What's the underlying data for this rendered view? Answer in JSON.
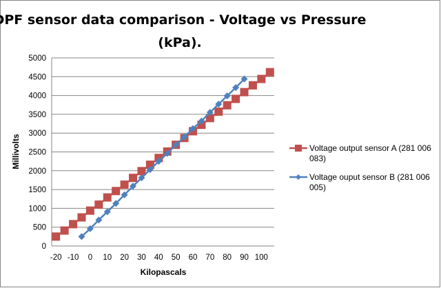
{
  "chart_data": {
    "type": "line",
    "title_lines": [
      "DPF sensor data comparison - Voltage vs Pressure",
      "(kPa)."
    ],
    "xlabel": "Kilopascals",
    "ylabel": "Millivolts",
    "x": [
      -20,
      -15,
      -10,
      -5,
      0,
      5,
      10,
      15,
      20,
      25,
      30,
      35,
      40,
      45,
      50,
      55,
      60,
      65,
      70,
      75,
      80,
      85,
      90,
      95,
      100,
      105
    ],
    "x_tick_labels": [
      "-20",
      "-10",
      "0",
      "10",
      "20",
      "30",
      "40",
      "50",
      "60",
      "70",
      "80",
      "90",
      "100"
    ],
    "y_ticks": [
      0,
      500,
      1000,
      1500,
      2000,
      2500,
      3000,
      3500,
      4000,
      4500,
      5000
    ],
    "ylim": [
      0,
      5000
    ],
    "grid": "horizontal",
    "legend_position": "right",
    "series": [
      {
        "name": "Voltage output sensor A (281 006 083)",
        "legend_lines": [
          "Voltage output sensor A (281 006",
          "083)"
        ],
        "color": "#C0504D",
        "marker": "square",
        "x": [
          -20,
          -15,
          -10,
          -5,
          0,
          5,
          10,
          15,
          20,
          25,
          30,
          35,
          40,
          45,
          50,
          55,
          60,
          65,
          70,
          75,
          80,
          85,
          90,
          95,
          100,
          105
        ],
        "values": [
          250,
          410,
          580,
          760,
          940,
          1100,
          1290,
          1460,
          1630,
          1810,
          1990,
          2160,
          2340,
          2510,
          2690,
          2870,
          3050,
          3220,
          3400,
          3570,
          3740,
          3910,
          4090,
          4270,
          4440,
          4620
        ]
      },
      {
        "name": "Voltage ouput sensor B (281 006 005)",
        "legend_lines": [
          "Voltage ouput sensor B (281 006",
          "005)"
        ],
        "color": "#4F81BD",
        "marker": "diamond",
        "x": [
          -5,
          0,
          5,
          10,
          15,
          20,
          25,
          30,
          35,
          40,
          45,
          50,
          55,
          60,
          65,
          70,
          75,
          80,
          85,
          90
        ],
        "values": [
          250,
          460,
          690,
          910,
          1130,
          1360,
          1590,
          1810,
          2030,
          2250,
          2460,
          2690,
          2900,
          3120,
          3320,
          3550,
          3770,
          3990,
          4210,
          4440
        ]
      }
    ]
  }
}
